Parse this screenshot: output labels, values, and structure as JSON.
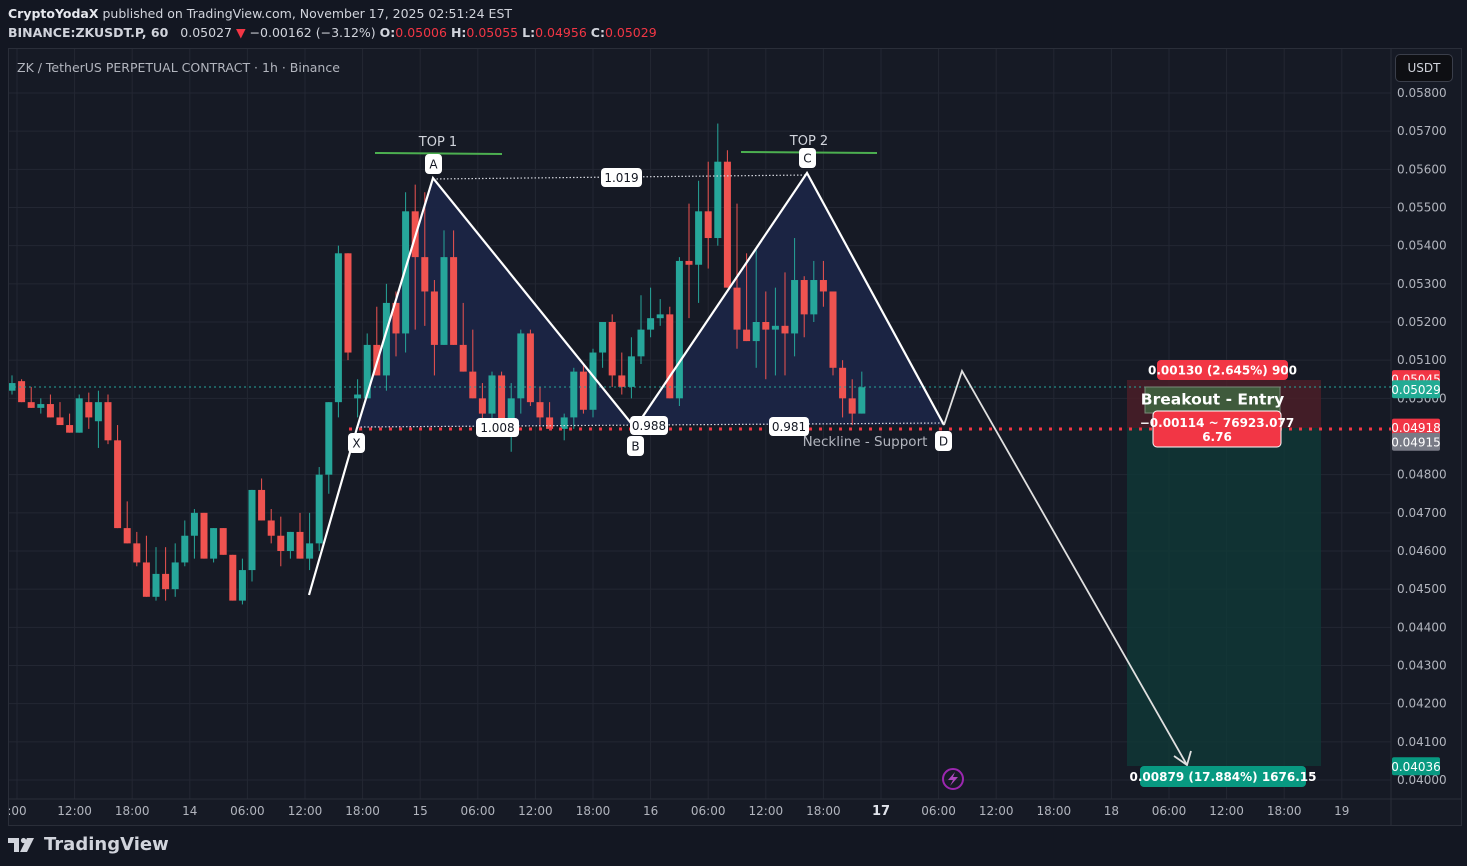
{
  "header": {
    "author": "CryptoYodaX",
    "published_text": " published on TradingView.com, November 17, 2025 02:51:24 EST",
    "symbol": "BINANCE:ZKUSDT.P, 60",
    "last": "0.05027",
    "change": "−0.00162 (−3.12%)",
    "o_label": "O:",
    "o": "0.05006",
    "h_label": "H:",
    "h": "0.05055",
    "l_label": "L:",
    "l": "0.04956",
    "c_label": "C:",
    "c": "0.05029"
  },
  "chart_title": "ZK / TetherUS PERPETUAL CONTRACT · 1h · Binance",
  "currency_button": "USDT",
  "footer": {
    "brand": "TradingView"
  },
  "colors": {
    "up": "#26a69a",
    "down": "#ef5350",
    "bg": "#161a25",
    "grid": "#232733",
    "pattern_fill": "#1b2545",
    "neckline": "#f23645",
    "top_line": "#4caf50",
    "target_zone": "#0f3b38",
    "stop_zone": "#4a1f28"
  },
  "price_axis": {
    "ticks": [
      "0.05800",
      "0.05700",
      "0.05600",
      "0.05500",
      "0.05400",
      "0.05300",
      "0.05200",
      "0.05100",
      "0.05000",
      "0.04800",
      "0.04700",
      "0.04600",
      "0.04500",
      "0.04400",
      "0.04300",
      "0.04200",
      "0.04100",
      "0.04000"
    ],
    "badges": [
      {
        "label": "0.05045",
        "color": "#f23645"
      },
      {
        "label": "0.05029",
        "color": "#22ab94"
      },
      {
        "label": "0.04918",
        "color": "#f23645"
      },
      {
        "label": "0.04915",
        "color": "#787b86"
      },
      {
        "label": "0.04036",
        "color": "#089981"
      }
    ]
  },
  "time_axis": {
    "ticks": [
      ":00",
      "12:00",
      "18:00",
      "14",
      "06:00",
      "12:00",
      "18:00",
      "15",
      "06:00",
      "12:00",
      "18:00",
      "16",
      "06:00",
      "12:00",
      "18:00",
      "17",
      "06:00",
      "12:00",
      "18:00",
      "18",
      "06:00",
      "12:00",
      "18:00",
      "19"
    ]
  },
  "annotations": {
    "top1": "TOP 1",
    "top2": "TOP 2",
    "points": {
      "x": "X",
      "a": "A",
      "b": "B",
      "c": "C",
      "d": "D"
    },
    "ratios": {
      "xa_cd": "1.019",
      "xb": "1.008",
      "bc": "0.988",
      "cd": "0.981"
    },
    "neckline_label": "Neckline - Support",
    "entry_label": "Breakout - Entry",
    "stop_label": "0.00130 (2.645%) 900",
    "risk_label_line1": "−0.00114 ~ 76923.077",
    "risk_label_line2": "6.76",
    "target_label": "0.00879 (17.884%) 1676.15"
  },
  "chart_data": {
    "type": "candlestick",
    "title": "ZK / TetherUS PERPETUAL CONTRACT · 1h · Binance",
    "xlabel": "",
    "ylabel": "USDT",
    "ylim": [
      0.0397,
      0.0586
    ],
    "x_ticks": [
      ":00",
      "12:00",
      "18:00",
      "14",
      "06:00",
      "12:00",
      "18:00",
      "15",
      "06:00",
      "12:00",
      "18:00",
      "16",
      "06:00",
      "12:00",
      "18:00",
      "17",
      "06:00",
      "12:00",
      "18:00",
      "18",
      "06:00",
      "12:00",
      "18:00",
      "19"
    ],
    "candles": [
      [
        0.0502,
        0.0506,
        0.0501,
        0.0504
      ],
      [
        0.05045,
        0.0505,
        0.0499,
        0.0499
      ],
      [
        0.0499,
        0.0503,
        0.04975,
        0.04975
      ],
      [
        0.04975,
        0.05,
        0.0496,
        0.04985
      ],
      [
        0.04985,
        0.0501,
        0.0495,
        0.0495
      ],
      [
        0.0495,
        0.0499,
        0.0493,
        0.0493
      ],
      [
        0.0493,
        0.0496,
        0.0491,
        0.0491
      ],
      [
        0.0491,
        0.0501,
        0.0491,
        0.05
      ],
      [
        0.0499,
        0.05015,
        0.0492,
        0.0495
      ],
      [
        0.0494,
        0.0502,
        0.0487,
        0.0499
      ],
      [
        0.0499,
        0.0501,
        0.0488,
        0.0489
      ],
      [
        0.0489,
        0.0493,
        0.0481,
        0.0466
      ],
      [
        0.0466,
        0.0473,
        0.0464,
        0.0462
      ],
      [
        0.0462,
        0.0465,
        0.0456,
        0.0457
      ],
      [
        0.0457,
        0.0464,
        0.0448,
        0.0448
      ],
      [
        0.0448,
        0.0461,
        0.0447,
        0.0454
      ],
      [
        0.0454,
        0.0461,
        0.0447,
        0.045
      ],
      [
        0.045,
        0.0462,
        0.0448,
        0.0457
      ],
      [
        0.0457,
        0.0468,
        0.0456,
        0.0464
      ],
      [
        0.0464,
        0.0471,
        0.0458,
        0.047
      ],
      [
        0.047,
        0.0467,
        0.0459,
        0.0458
      ],
      [
        0.0458,
        0.0466,
        0.0457,
        0.0466
      ],
      [
        0.0466,
        0.0466,
        0.0459,
        0.0459
      ],
      [
        0.0459,
        0.045,
        0.0447,
        0.0447
      ],
      [
        0.0447,
        0.0458,
        0.0446,
        0.0455
      ],
      [
        0.0455,
        0.0476,
        0.0452,
        0.0476
      ],
      [
        0.0476,
        0.0479,
        0.047,
        0.0468
      ],
      [
        0.0468,
        0.0471,
        0.0462,
        0.0464
      ],
      [
        0.0464,
        0.0469,
        0.0456,
        0.046
      ],
      [
        0.046,
        0.0463,
        0.0458,
        0.0465
      ],
      [
        0.0465,
        0.047,
        0.046,
        0.0458
      ],
      [
        0.0458,
        0.047,
        0.0455,
        0.0462
      ],
      [
        0.0462,
        0.0482,
        0.046,
        0.048
      ],
      [
        0.048,
        0.0499,
        0.0475,
        0.0499
      ],
      [
        0.0499,
        0.054,
        0.0495,
        0.0538
      ],
      [
        0.0538,
        0.0531,
        0.051,
        0.0512
      ],
      [
        0.05,
        0.0505,
        0.0495,
        0.0501
      ],
      [
        0.05,
        0.0517,
        0.05,
        0.0514
      ],
      [
        0.0514,
        0.0524,
        0.0511,
        0.0506
      ],
      [
        0.0506,
        0.053,
        0.0502,
        0.0525
      ],
      [
        0.0525,
        0.0528,
        0.0511,
        0.0517
      ],
      [
        0.0517,
        0.0554,
        0.0512,
        0.0549
      ],
      [
        0.0549,
        0.0556,
        0.0518,
        0.0537
      ],
      [
        0.0537,
        0.0554,
        0.0519,
        0.0528
      ],
      [
        0.0528,
        0.0531,
        0.0506,
        0.0514
      ],
      [
        0.0514,
        0.0544,
        0.0514,
        0.0537
      ],
      [
        0.0537,
        0.0544,
        0.0515,
        0.0514
      ],
      [
        0.0514,
        0.0525,
        0.0513,
        0.0507
      ],
      [
        0.0507,
        0.0518,
        0.0505,
        0.05
      ]
    ]
  }
}
